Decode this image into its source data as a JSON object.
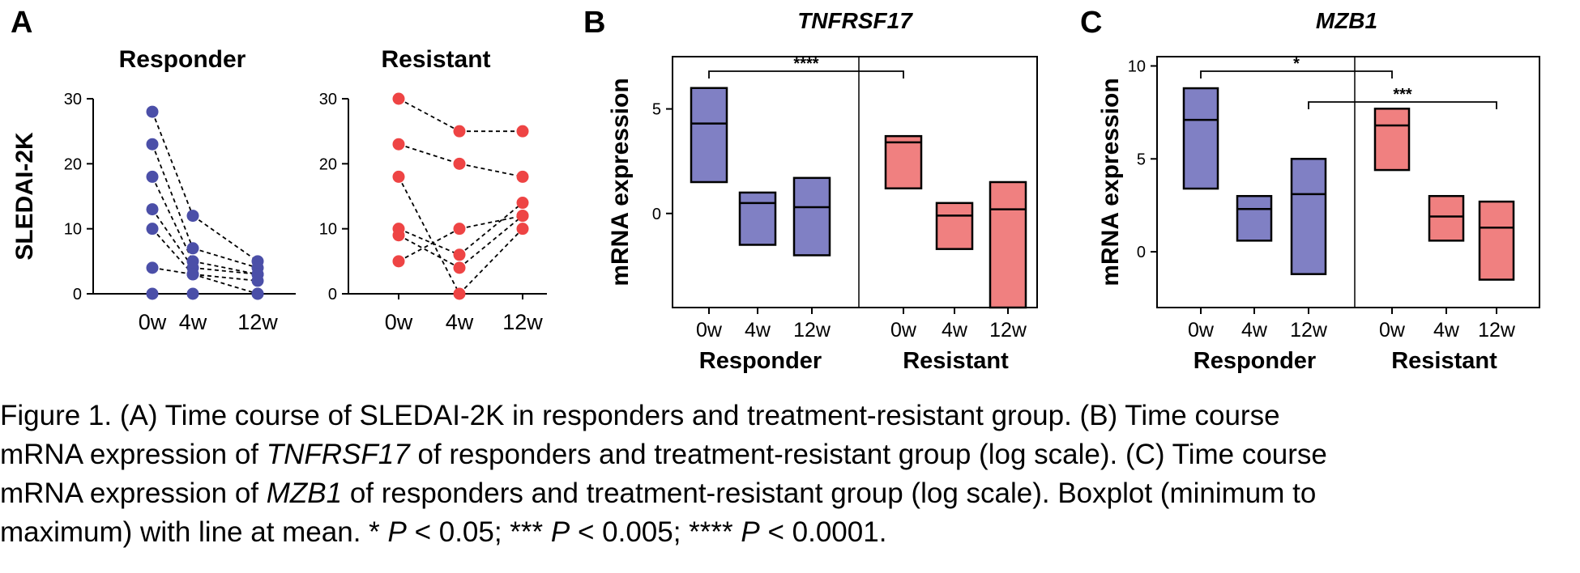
{
  "chart_data": [
    {
      "panel": "A",
      "type": "scatter",
      "title": "Responder",
      "ylabel": "SLEDAI-2K",
      "x_categories": [
        "0w",
        "4w",
        "12w"
      ],
      "ylim": [
        0,
        30
      ],
      "yticks": [
        0,
        10,
        20,
        30
      ],
      "point_color": "#4b4fa8",
      "subjects": [
        [
          28,
          12,
          5
        ],
        [
          23,
          7,
          4
        ],
        [
          18,
          5,
          3
        ],
        [
          13,
          4,
          3
        ],
        [
          10,
          3,
          2
        ],
        [
          4,
          3,
          0
        ],
        [
          0,
          0,
          0
        ]
      ]
    },
    {
      "panel": "",
      "type": "scatter",
      "title": "Resistant",
      "x_categories": [
        "0w",
        "4w",
        "12w"
      ],
      "ylim": [
        0,
        30
      ],
      "yticks": [
        0,
        10,
        20,
        30
      ],
      "point_color": "#ee4444",
      "subjects": [
        [
          30,
          25,
          25
        ],
        [
          23,
          20,
          18
        ],
        [
          18,
          0,
          10
        ],
        [
          10,
          6,
          14
        ],
        [
          9,
          4,
          12
        ],
        [
          5,
          10,
          12
        ]
      ]
    },
    {
      "panel": "B",
      "type": "box",
      "title": "TNFRSF17",
      "ylabel": "mRNA expression",
      "ylim": [
        -4.5,
        7.5
      ],
      "yticks": [
        0,
        5
      ],
      "x_categories": [
        "0w",
        "4w",
        "12w",
        "0w",
        "4w",
        "12w"
      ],
      "groups": [
        {
          "name": "Responder",
          "color": "#8080c4",
          "boxes": [
            {
              "min": 1.5,
              "max": 6.0,
              "mean": 4.3
            },
            {
              "min": -1.5,
              "max": 1.0,
              "mean": 0.5
            },
            {
              "min": -2.0,
              "max": 1.7,
              "mean": 0.3
            }
          ]
        },
        {
          "name": "Resistant",
          "color": "#f08080",
          "boxes": [
            {
              "min": 1.2,
              "max": 3.7,
              "mean": 3.4
            },
            {
              "min": -1.7,
              "max": 0.5,
              "mean": -0.1
            },
            {
              "min": -4.5,
              "max": 1.5,
              "mean": 0.2
            }
          ]
        }
      ],
      "significance": [
        {
          "from": 0,
          "to": 3,
          "label": "****"
        }
      ]
    },
    {
      "panel": "C",
      "type": "box",
      "title": "MZB1",
      "ylabel": "mRNA expression",
      "ylim": [
        -3,
        10.5
      ],
      "yticks": [
        0,
        5,
        10
      ],
      "x_categories": [
        "0w",
        "4w",
        "12w",
        "0w",
        "4w",
        "12w"
      ],
      "groups": [
        {
          "name": "Responder",
          "color": "#8080c4",
          "boxes": [
            {
              "min": 3.4,
              "max": 8.8,
              "mean": 7.1
            },
            {
              "min": 0.6,
              "max": 3.0,
              "mean": 2.3
            },
            {
              "min": -1.2,
              "max": 5.0,
              "mean": 3.1
            }
          ]
        },
        {
          "name": "Resistant",
          "color": "#f08080",
          "boxes": [
            {
              "min": 4.4,
              "max": 7.7,
              "mean": 6.8
            },
            {
              "min": 0.6,
              "max": 3.0,
              "mean": 1.9
            },
            {
              "min": -1.5,
              "max": 2.7,
              "mean": 1.3
            }
          ]
        }
      ],
      "significance": [
        {
          "from": 0,
          "to": 3,
          "label": "*"
        },
        {
          "from": 2,
          "to": 5,
          "label": "***"
        }
      ]
    }
  ],
  "caption": {
    "lines": [
      [
        {
          "t": "Figure 1. (A) Time course of SLEDAI-2K in responders and treatment-resistant group. (B) Time course"
        }
      ],
      [
        {
          "t": "mRNA expression of "
        },
        {
          "t": "TNFRSF17",
          "i": true
        },
        {
          "t": " of responders and treatment-resistant group (log scale). (C) Time course"
        }
      ],
      [
        {
          "t": "mRNA expression of "
        },
        {
          "t": "MZB1",
          "i": true
        },
        {
          "t": " of responders and treatment-resistant group (log scale). Boxplot (minimum to"
        }
      ],
      [
        {
          "t": "maximum) with line at mean. * "
        },
        {
          "t": "P",
          "i": true
        },
        {
          "t": " < 0.05; *** "
        },
        {
          "t": "P",
          "i": true
        },
        {
          "t": " < 0.005; **** "
        },
        {
          "t": "P",
          "i": true
        },
        {
          "t": " < 0.0001."
        }
      ]
    ]
  }
}
